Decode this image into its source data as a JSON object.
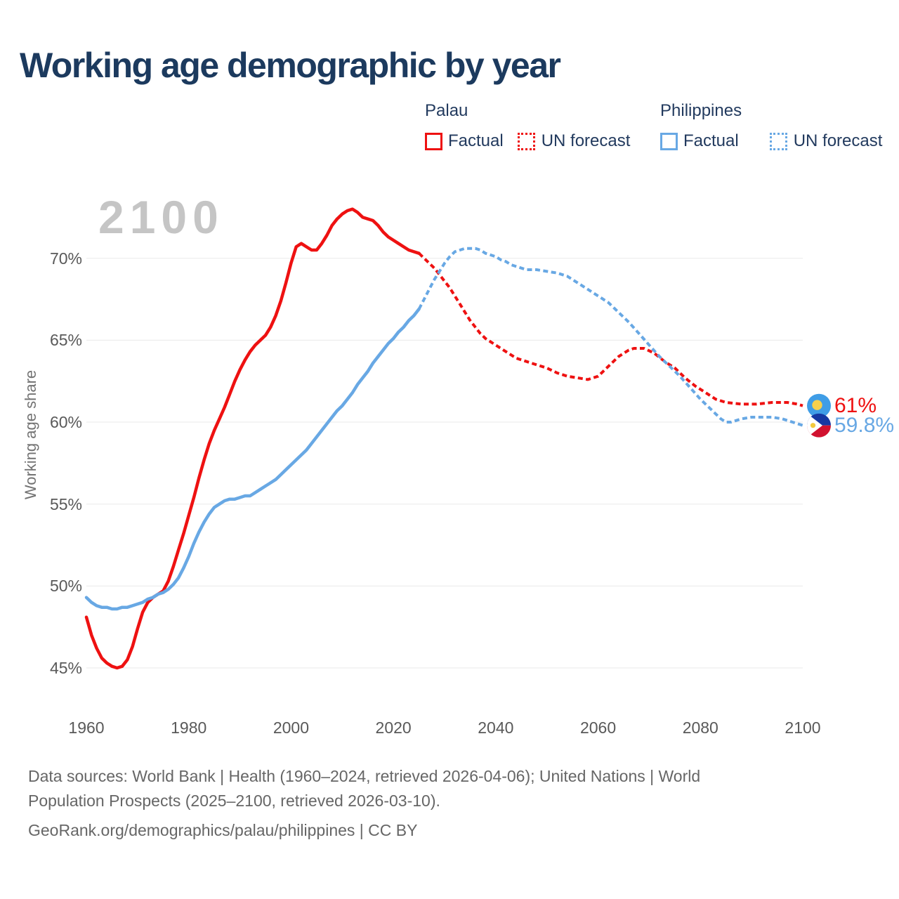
{
  "watermark": "2100",
  "legend": {
    "groups": [
      {
        "country": "Palau",
        "factual_label": "Factual",
        "forecast_label": "UN forecast",
        "color": "#ee1111"
      },
      {
        "country": "Philippines",
        "factual_label": "Factual",
        "forecast_label": "UN forecast",
        "color": "#68a8e4"
      }
    ]
  },
  "chart_data": {
    "type": "line",
    "title": "Working age demographic by year",
    "xlabel": "",
    "ylabel": "Working age share",
    "grid": "horizontal",
    "legend_position": "top-right",
    "x_axis": {
      "min": 1960,
      "max": 2100,
      "ticks": [
        1960,
        1980,
        2000,
        2020,
        2040,
        2060,
        2080,
        2100
      ]
    },
    "y_axis": {
      "min": 44,
      "max": 74,
      "unit": "%",
      "ticks": [
        {
          "value": 45,
          "label": "45%"
        },
        {
          "value": 50,
          "label": "50%"
        },
        {
          "value": 55,
          "label": "55%"
        },
        {
          "value": 60,
          "label": "60%"
        },
        {
          "value": 65,
          "label": "65%"
        },
        {
          "value": 70,
          "label": "70%"
        }
      ]
    },
    "series": [
      {
        "name": "Palau Factual",
        "country": "Palau",
        "kind": "factual",
        "style": "solid",
        "color": "#ee1111",
        "points": [
          [
            1960,
            48.1
          ],
          [
            1961,
            47.0
          ],
          [
            1962,
            46.2
          ],
          [
            1963,
            45.6
          ],
          [
            1964,
            45.3
          ],
          [
            1965,
            45.1
          ],
          [
            1966,
            45.0
          ],
          [
            1967,
            45.1
          ],
          [
            1968,
            45.5
          ],
          [
            1969,
            46.3
          ],
          [
            1970,
            47.4
          ],
          [
            1971,
            48.4
          ],
          [
            1972,
            49.0
          ],
          [
            1973,
            49.3
          ],
          [
            1974,
            49.5
          ],
          [
            1975,
            49.7
          ],
          [
            1976,
            50.3
          ],
          [
            1977,
            51.2
          ],
          [
            1978,
            52.2
          ],
          [
            1979,
            53.2
          ],
          [
            1980,
            54.3
          ],
          [
            1981,
            55.4
          ],
          [
            1982,
            56.6
          ],
          [
            1983,
            57.7
          ],
          [
            1984,
            58.7
          ],
          [
            1985,
            59.5
          ],
          [
            1986,
            60.2
          ],
          [
            1987,
            60.9
          ],
          [
            1988,
            61.7
          ],
          [
            1989,
            62.5
          ],
          [
            1990,
            63.2
          ],
          [
            1991,
            63.8
          ],
          [
            1992,
            64.3
          ],
          [
            1993,
            64.7
          ],
          [
            1994,
            65.0
          ],
          [
            1995,
            65.3
          ],
          [
            1996,
            65.8
          ],
          [
            1997,
            66.5
          ],
          [
            1998,
            67.4
          ],
          [
            1999,
            68.5
          ],
          [
            2000,
            69.7
          ],
          [
            2001,
            70.7
          ],
          [
            2002,
            70.9
          ],
          [
            2003,
            70.7
          ],
          [
            2004,
            70.5
          ],
          [
            2005,
            70.5
          ],
          [
            2006,
            70.9
          ],
          [
            2007,
            71.4
          ],
          [
            2008,
            72.0
          ],
          [
            2009,
            72.4
          ],
          [
            2010,
            72.7
          ],
          [
            2011,
            72.9
          ],
          [
            2012,
            73.0
          ],
          [
            2013,
            72.8
          ],
          [
            2014,
            72.5
          ],
          [
            2015,
            72.4
          ],
          [
            2016,
            72.3
          ],
          [
            2017,
            72.0
          ],
          [
            2018,
            71.6
          ],
          [
            2019,
            71.3
          ],
          [
            2020,
            71.1
          ],
          [
            2021,
            70.9
          ],
          [
            2022,
            70.7
          ],
          [
            2023,
            70.5
          ],
          [
            2024,
            70.4
          ],
          [
            2025,
            70.3
          ]
        ]
      },
      {
        "name": "Palau UN forecast",
        "country": "Palau",
        "kind": "forecast",
        "style": "dashed",
        "color": "#ee1111",
        "points": [
          [
            2025,
            70.3
          ],
          [
            2026,
            70.0
          ],
          [
            2027,
            69.7
          ],
          [
            2028,
            69.4
          ],
          [
            2029,
            69.0
          ],
          [
            2030,
            68.6
          ],
          [
            2031,
            68.2
          ],
          [
            2032,
            67.7
          ],
          [
            2033,
            67.2
          ],
          [
            2034,
            66.7
          ],
          [
            2035,
            66.2
          ],
          [
            2036,
            65.8
          ],
          [
            2037,
            65.4
          ],
          [
            2038,
            65.1
          ],
          [
            2039,
            64.9
          ],
          [
            2040,
            64.7
          ],
          [
            2042,
            64.3
          ],
          [
            2044,
            63.9
          ],
          [
            2046,
            63.7
          ],
          [
            2048,
            63.5
          ],
          [
            2050,
            63.3
          ],
          [
            2052,
            63.0
          ],
          [
            2054,
            62.8
          ],
          [
            2056,
            62.7
          ],
          [
            2058,
            62.6
          ],
          [
            2060,
            62.8
          ],
          [
            2062,
            63.4
          ],
          [
            2064,
            64.0
          ],
          [
            2066,
            64.4
          ],
          [
            2067,
            64.5
          ],
          [
            2069,
            64.5
          ],
          [
            2071,
            64.2
          ],
          [
            2073,
            63.7
          ],
          [
            2075,
            63.3
          ],
          [
            2077,
            62.7
          ],
          [
            2079,
            62.2
          ],
          [
            2081,
            61.8
          ],
          [
            2083,
            61.4
          ],
          [
            2085,
            61.2
          ],
          [
            2088,
            61.1
          ],
          [
            2091,
            61.1
          ],
          [
            2094,
            61.2
          ],
          [
            2097,
            61.2
          ],
          [
            2099,
            61.1
          ],
          [
            2100,
            61.0
          ]
        ]
      },
      {
        "name": "Philippines Factual",
        "country": "Philippines",
        "kind": "factual",
        "style": "solid",
        "color": "#68a8e4",
        "points": [
          [
            1960,
            49.3
          ],
          [
            1961,
            49.0
          ],
          [
            1962,
            48.8
          ],
          [
            1963,
            48.7
          ],
          [
            1964,
            48.7
          ],
          [
            1965,
            48.6
          ],
          [
            1966,
            48.6
          ],
          [
            1967,
            48.7
          ],
          [
            1968,
            48.7
          ],
          [
            1969,
            48.8
          ],
          [
            1970,
            48.9
          ],
          [
            1971,
            49.0
          ],
          [
            1972,
            49.2
          ],
          [
            1973,
            49.3
          ],
          [
            1974,
            49.5
          ],
          [
            1975,
            49.6
          ],
          [
            1976,
            49.8
          ],
          [
            1977,
            50.1
          ],
          [
            1978,
            50.5
          ],
          [
            1979,
            51.1
          ],
          [
            1980,
            51.8
          ],
          [
            1981,
            52.6
          ],
          [
            1982,
            53.3
          ],
          [
            1983,
            53.9
          ],
          [
            1984,
            54.4
          ],
          [
            1985,
            54.8
          ],
          [
            1986,
            55.0
          ],
          [
            1987,
            55.2
          ],
          [
            1988,
            55.3
          ],
          [
            1989,
            55.3
          ],
          [
            1990,
            55.4
          ],
          [
            1991,
            55.5
          ],
          [
            1992,
            55.5
          ],
          [
            1993,
            55.7
          ],
          [
            1994,
            55.9
          ],
          [
            1995,
            56.1
          ],
          [
            1996,
            56.3
          ],
          [
            1997,
            56.5
          ],
          [
            1998,
            56.8
          ],
          [
            1999,
            57.1
          ],
          [
            2000,
            57.4
          ],
          [
            2001,
            57.7
          ],
          [
            2002,
            58.0
          ],
          [
            2003,
            58.3
          ],
          [
            2004,
            58.7
          ],
          [
            2005,
            59.1
          ],
          [
            2006,
            59.5
          ],
          [
            2007,
            59.9
          ],
          [
            2008,
            60.3
          ],
          [
            2009,
            60.7
          ],
          [
            2010,
            61.0
          ],
          [
            2011,
            61.4
          ],
          [
            2012,
            61.8
          ],
          [
            2013,
            62.3
          ],
          [
            2014,
            62.7
          ],
          [
            2015,
            63.1
          ],
          [
            2016,
            63.6
          ],
          [
            2017,
            64.0
          ],
          [
            2018,
            64.4
          ],
          [
            2019,
            64.8
          ],
          [
            2020,
            65.1
          ],
          [
            2021,
            65.5
          ],
          [
            2022,
            65.8
          ],
          [
            2023,
            66.2
          ],
          [
            2024,
            66.5
          ],
          [
            2025,
            66.9
          ]
        ]
      },
      {
        "name": "Philippines UN forecast",
        "country": "Philippines",
        "kind": "forecast",
        "style": "dashed",
        "color": "#68a8e4",
        "points": [
          [
            2025,
            66.9
          ],
          [
            2026,
            67.5
          ],
          [
            2027,
            68.1
          ],
          [
            2028,
            68.7
          ],
          [
            2029,
            69.2
          ],
          [
            2030,
            69.7
          ],
          [
            2031,
            70.1
          ],
          [
            2032,
            70.4
          ],
          [
            2033,
            70.5
          ],
          [
            2034,
            70.6
          ],
          [
            2035,
            70.6
          ],
          [
            2036,
            70.6
          ],
          [
            2037,
            70.5
          ],
          [
            2038,
            70.3
          ],
          [
            2039,
            70.2
          ],
          [
            2040,
            70.1
          ],
          [
            2041,
            69.9
          ],
          [
            2042,
            69.8
          ],
          [
            2043,
            69.6
          ],
          [
            2044,
            69.5
          ],
          [
            2045,
            69.4
          ],
          [
            2046,
            69.3
          ],
          [
            2048,
            69.3
          ],
          [
            2050,
            69.2
          ],
          [
            2052,
            69.1
          ],
          [
            2054,
            68.9
          ],
          [
            2056,
            68.5
          ],
          [
            2058,
            68.1
          ],
          [
            2060,
            67.7
          ],
          [
            2062,
            67.3
          ],
          [
            2064,
            66.7
          ],
          [
            2066,
            66.1
          ],
          [
            2068,
            65.4
          ],
          [
            2070,
            64.7
          ],
          [
            2072,
            64.0
          ],
          [
            2074,
            63.4
          ],
          [
            2075,
            63.1
          ],
          [
            2076,
            62.8
          ],
          [
            2078,
            62.1
          ],
          [
            2080,
            61.4
          ],
          [
            2081,
            61.1
          ],
          [
            2082,
            60.8
          ],
          [
            2083,
            60.5
          ],
          [
            2084,
            60.2
          ],
          [
            2085,
            60.0
          ],
          [
            2086,
            60.0
          ],
          [
            2087,
            60.1
          ],
          [
            2088,
            60.2
          ],
          [
            2090,
            60.3
          ],
          [
            2092,
            60.3
          ],
          [
            2094,
            60.3
          ],
          [
            2096,
            60.2
          ],
          [
            2098,
            60.0
          ],
          [
            2100,
            59.8
          ]
        ]
      }
    ],
    "end_markers": [
      {
        "country": "Palau",
        "flag": "palau-flag",
        "label": "61%",
        "value": 61.0,
        "year": 2100,
        "color": "#ee1111"
      },
      {
        "country": "Philippines",
        "flag": "philippines-flag",
        "label": "59.8%",
        "value": 59.8,
        "year": 2100,
        "color": "#68a8e4"
      }
    ]
  },
  "footer": {
    "line1": "Data sources: World Bank | Health (1960–2024, retrieved 2026-04-06); United Nations | World",
    "line2": "Population Prospects (2025–2100, retrieved 2026-03-10).",
    "line3": "GeoRank.org/demographics/palau/philippines | CC BY"
  }
}
